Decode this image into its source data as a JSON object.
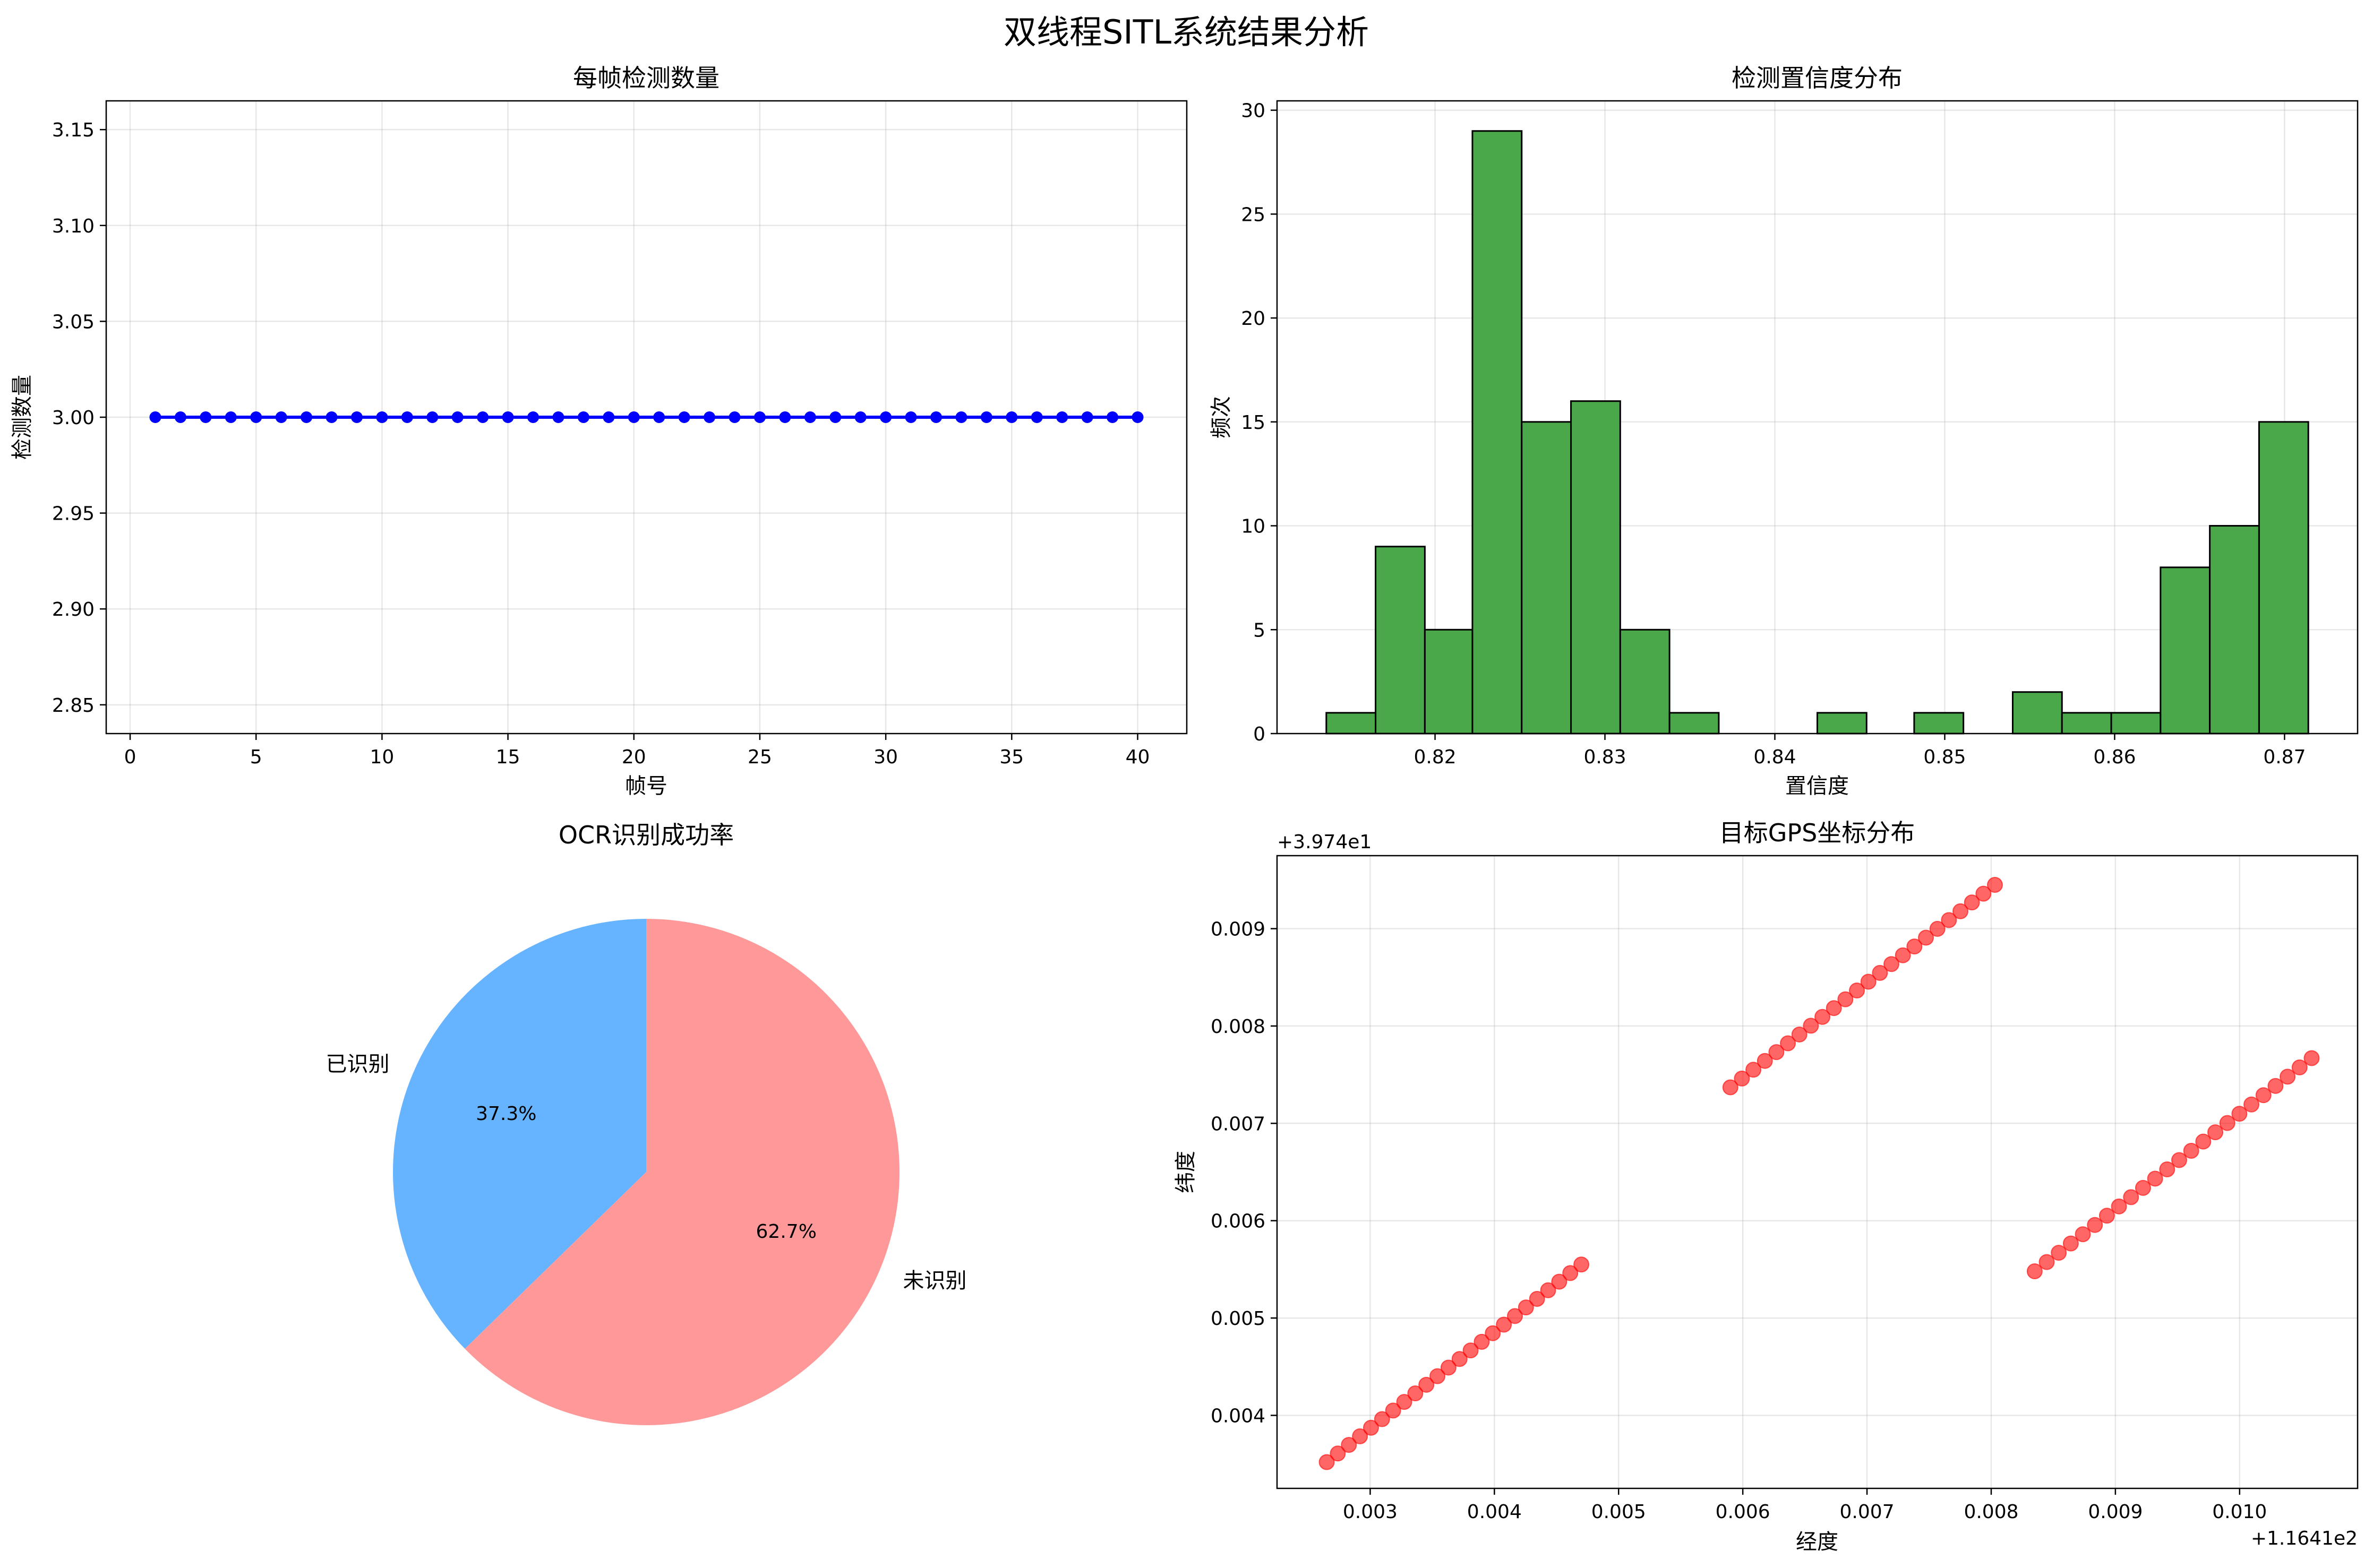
{
  "figure": {
    "title": "双线程SITL系统结果分析"
  },
  "chart_data": [
    {
      "type": "line",
      "title": "每帧检测数量",
      "xlabel": "帧号",
      "ylabel": "检测数量",
      "x": [
        1,
        2,
        3,
        4,
        5,
        6,
        7,
        8,
        9,
        10,
        11,
        12,
        13,
        14,
        15,
        16,
        17,
        18,
        19,
        20,
        21,
        22,
        23,
        24,
        25,
        26,
        27,
        28,
        29,
        30,
        31,
        32,
        33,
        34,
        35,
        36,
        37,
        38,
        39,
        40
      ],
      "series": [
        {
          "values": [
            3,
            3,
            3,
            3,
            3,
            3,
            3,
            3,
            3,
            3,
            3,
            3,
            3,
            3,
            3,
            3,
            3,
            3,
            3,
            3,
            3,
            3,
            3,
            3,
            3,
            3,
            3,
            3,
            3,
            3,
            3,
            3,
            3,
            3,
            3,
            3,
            3,
            3,
            3,
            3
          ],
          "color": "#0000ff",
          "marker": "o"
        }
      ],
      "xlim": [
        -0.95,
        41.95
      ],
      "ylim": [
        2.835,
        3.165
      ],
      "xticks": [
        0,
        5,
        10,
        15,
        20,
        25,
        30,
        35,
        40
      ],
      "xtick_labels": [
        "0",
        "5",
        "10",
        "15",
        "20",
        "25",
        "30",
        "35",
        "40"
      ],
      "yticks": [
        2.85,
        2.9,
        2.95,
        3.0,
        3.05,
        3.1,
        3.15
      ],
      "ytick_labels": [
        "2.85",
        "2.90",
        "2.95",
        "3.00",
        "3.05",
        "3.10",
        "3.15"
      ],
      "grid": true
    },
    {
      "type": "bar",
      "subtype": "histogram",
      "title": "检测置信度分布",
      "xlabel": "置信度",
      "ylabel": "频次",
      "bin_edges": [
        0.8136,
        0.8165,
        0.8194,
        0.8222,
        0.8251,
        0.828,
        0.8309,
        0.8338,
        0.8367,
        0.8396,
        0.8425,
        0.8454,
        0.8482,
        0.8511,
        0.854,
        0.8569,
        0.8598,
        0.8627,
        0.8656,
        0.8685,
        0.8714
      ],
      "values": [
        1,
        9,
        5,
        29,
        15,
        16,
        5,
        1,
        0,
        0,
        1,
        0,
        1,
        0,
        2,
        1,
        1,
        8,
        10,
        15
      ],
      "color": "#4aa74a",
      "edgecolor": "#000000",
      "xlim": [
        0.8107,
        0.8743
      ],
      "ylim": [
        0,
        30.45
      ],
      "xticks": [
        0.82,
        0.83,
        0.84,
        0.85,
        0.86,
        0.87
      ],
      "xtick_labels": [
        "0.82",
        "0.83",
        "0.84",
        "0.85",
        "0.86",
        "0.87"
      ],
      "yticks": [
        0,
        5,
        10,
        15,
        20,
        25,
        30
      ],
      "ytick_labels": [
        "0",
        "5",
        "10",
        "15",
        "20",
        "25",
        "30"
      ],
      "grid": true
    },
    {
      "type": "pie",
      "title": "OCR识别成功率",
      "labels": [
        "已识别",
        "未识别"
      ],
      "values": [
        37.3,
        62.7
      ],
      "autopct": [
        "37.3%",
        "62.7%"
      ],
      "colors": [
        "#66b3ff",
        "#ff9999"
      ],
      "startangle": 90
    },
    {
      "type": "scatter",
      "title": "目标GPS坐标分布",
      "xlabel": "经度",
      "ylabel": "纬度",
      "x_offset_text": "+1.1641e2",
      "y_offset_text": "+3.974e1",
      "color": "#ff0000",
      "alpha": 0.6,
      "xlim": [
        0.00225,
        0.01095
      ],
      "ylim": [
        0.00325,
        0.00975
      ],
      "xticks": [
        0.003,
        0.004,
        0.005,
        0.006,
        0.007,
        0.008,
        0.009,
        0.01
      ],
      "xtick_labels": [
        "0.003",
        "0.004",
        "0.005",
        "0.006",
        "0.007",
        "0.008",
        "0.009",
        "0.010"
      ],
      "yticks": [
        0.004,
        0.005,
        0.006,
        0.007,
        0.008,
        0.009
      ],
      "ytick_labels": [
        "0.004",
        "0.005",
        "0.006",
        "0.007",
        "0.008",
        "0.009"
      ],
      "grid": true,
      "clusters": [
        {
          "n": 24,
          "x_start": 0.00265,
          "x_end": 0.0047,
          "y_start": 0.00352,
          "y_end": 0.00555
        },
        {
          "n": 24,
          "x_start": 0.0059,
          "x_end": 0.00803,
          "y_start": 0.00737,
          "y_end": 0.00945
        },
        {
          "n": 24,
          "x_start": 0.00835,
          "x_end": 0.01058,
          "y_start": 0.00548,
          "y_end": 0.00767
        }
      ]
    }
  ]
}
